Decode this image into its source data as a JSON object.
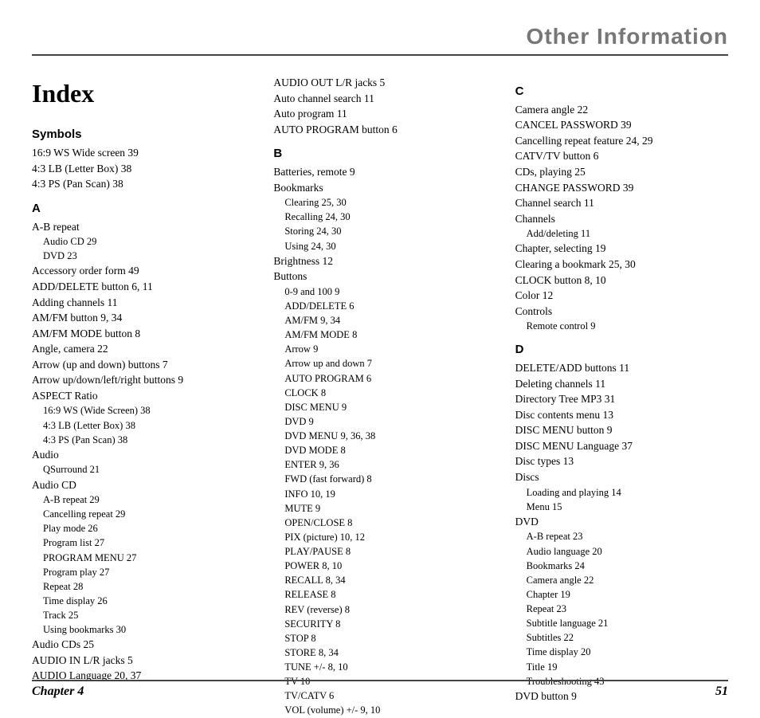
{
  "header": {
    "title": "Other Information"
  },
  "index_title": "Index",
  "footer": {
    "chapter": "Chapter 4",
    "page": "51"
  },
  "col1": {
    "sections": [
      {
        "heading": "Symbols",
        "entries": [
          {
            "t": "16:9  WS Wide screen  39"
          },
          {
            "t": "4:3 LB (Letter Box)  38"
          },
          {
            "t": "4:3 PS (Pan Scan)  38"
          }
        ]
      },
      {
        "heading": "A",
        "entries": [
          {
            "t": "A-B repeat"
          },
          {
            "t": "Audio CD  29",
            "sub": true
          },
          {
            "t": "DVD  23",
            "sub": true
          },
          {
            "t": "Accessory order form  49"
          },
          {
            "t": "ADD/DELETE button  6,  11"
          },
          {
            "t": "Adding channels  11"
          },
          {
            "t": "AM/FM button  9,  34"
          },
          {
            "t": "AM/FM MODE button  8"
          },
          {
            "t": "Angle, camera  22"
          },
          {
            "t": "Arrow (up and down) buttons  7"
          },
          {
            "t": "Arrow up/down/left/right buttons  9"
          },
          {
            "t": "ASPECT Ratio"
          },
          {
            "t": "16:9 WS (Wide Screen)  38",
            "sub": true
          },
          {
            "t": "4:3 LB (Letter Box)  38",
            "sub": true
          },
          {
            "t": "4:3 PS (Pan Scan)  38",
            "sub": true
          },
          {
            "t": "Audio"
          },
          {
            "t": "QSurround  21",
            "sub": true
          },
          {
            "t": "Audio CD"
          },
          {
            "t": "A-B repeat  29",
            "sub": true
          },
          {
            "t": "Cancelling repeat  29",
            "sub": true
          },
          {
            "t": "Play mode  26",
            "sub": true
          },
          {
            "t": "Program list  27",
            "sub": true
          },
          {
            "t": "PROGRAM MENU  27",
            "sub": true
          },
          {
            "t": "Program play  27",
            "sub": true
          },
          {
            "t": "Repeat  28",
            "sub": true
          },
          {
            "t": "Time display  26",
            "sub": true
          },
          {
            "t": "Track  25",
            "sub": true
          },
          {
            "t": "Using bookmarks  30",
            "sub": true
          },
          {
            "t": "Audio CDs  25"
          },
          {
            "t": "AUDIO IN L/R jacks  5"
          },
          {
            "t": "AUDIO Language  20, 37"
          }
        ]
      }
    ]
  },
  "col2": {
    "lead_entries": [
      {
        "t": "AUDIO OUT L/R jacks  5"
      },
      {
        "t": "Auto channel search  11"
      },
      {
        "t": "Auto program  11"
      },
      {
        "t": "AUTO PROGRAM button  6"
      }
    ],
    "sections": [
      {
        "heading": "B",
        "entries": [
          {
            "t": "Batteries, remote  9"
          },
          {
            "t": "Bookmarks"
          },
          {
            "t": "Clearing  25,  30",
            "sub": true
          },
          {
            "t": "Recalling  24,  30",
            "sub": true
          },
          {
            "t": "Storing  24,  30",
            "sub": true
          },
          {
            "t": "Using  24,  30",
            "sub": true
          },
          {
            "t": "Brightness  12"
          },
          {
            "t": "Buttons"
          },
          {
            "t": "0-9  and 100  9",
            "sub": true
          },
          {
            "t": "ADD/DELETE  6",
            "sub": true
          },
          {
            "t": "AM/FM  9,  34",
            "sub": true
          },
          {
            "t": "AM/FM MODE  8",
            "sub": true
          },
          {
            "t": "Arrow  9",
            "sub": true
          },
          {
            "t": "Arrow up and down  7",
            "sub": true
          },
          {
            "t": "AUTO PROGRAM  6",
            "sub": true
          },
          {
            "t": "CLOCK  8",
            "sub": true
          },
          {
            "t": "DISC MENU  9",
            "sub": true
          },
          {
            "t": "DVD  9",
            "sub": true
          },
          {
            "t": "DVD MENU  9,  36,  38",
            "sub": true
          },
          {
            "t": "DVD MODE  8",
            "sub": true
          },
          {
            "t": "ENTER  9,  36",
            "sub": true
          },
          {
            "t": "FWD (fast forward)  8",
            "sub": true
          },
          {
            "t": "INFO  10,  19",
            "sub": true
          },
          {
            "t": "MUTE  9",
            "sub": true
          },
          {
            "t": "OPEN/CLOSE  8",
            "sub": true
          },
          {
            "t": "PIX (picture)  10,  12",
            "sub": true
          },
          {
            "t": "PLAY/PAUSE  8",
            "sub": true
          },
          {
            "t": "POWER  8,  10",
            "sub": true
          },
          {
            "t": "RECALL  8,  34",
            "sub": true
          },
          {
            "t": "RELEASE  8",
            "sub": true
          },
          {
            "t": "REV (reverse)  8",
            "sub": true
          },
          {
            "t": "SECURITY  8",
            "sub": true
          },
          {
            "t": "STOP  8",
            "sub": true
          },
          {
            "t": "STORE  8,  34",
            "sub": true
          },
          {
            "t": "TUNE +/-  8,  10",
            "sub": true
          },
          {
            "t": "TV  10",
            "sub": true
          },
          {
            "t": "TV/CATV  6",
            "sub": true
          },
          {
            "t": "VOL (volume) +/-  9, 10",
            "sub": true
          }
        ]
      }
    ]
  },
  "col3": {
    "sections": [
      {
        "heading": "C",
        "entries": [
          {
            "t": "Camera angle  22"
          },
          {
            "t": "CANCEL PASSWORD  39"
          },
          {
            "t": "Cancelling repeat feature  24,  29"
          },
          {
            "t": "CATV/TV button  6"
          },
          {
            "t": "CDs, playing  25"
          },
          {
            "t": "CHANGE PASSWORD  39"
          },
          {
            "t": "Channel search  11"
          },
          {
            "t": "Channels"
          },
          {
            "t": "Add/deleting  11",
            "sub": true
          },
          {
            "t": "Chapter, selecting  19"
          },
          {
            "t": "Clearing a bookmark  25,  30"
          },
          {
            "t": "CLOCK button  8,  10"
          },
          {
            "t": "Color  12"
          },
          {
            "t": "Controls"
          },
          {
            "t": "Remote control  9",
            "sub": true
          }
        ]
      },
      {
        "heading": "D",
        "entries": [
          {
            "t": "DELETE/ADD buttons  11"
          },
          {
            "t": "Deleting channels  11"
          },
          {
            "t": "Directory Tree MP3  31"
          },
          {
            "t": "Disc contents menu  13"
          },
          {
            "t": "DISC MENU button  9"
          },
          {
            "t": "DISC MENU Language  37"
          },
          {
            "t": "Disc types  13"
          },
          {
            "t": "Discs"
          },
          {
            "t": "Loading and playing  14",
            "sub": true
          },
          {
            "t": "Menu  15",
            "sub": true
          },
          {
            "t": "DVD"
          },
          {
            "t": "A-B repeat  23",
            "sub": true
          },
          {
            "t": "Audio language  20",
            "sub": true
          },
          {
            "t": "Bookmarks  24",
            "sub": true
          },
          {
            "t": "Camera angle  22",
            "sub": true
          },
          {
            "t": "Chapter  19",
            "sub": true
          },
          {
            "t": "Repeat  23",
            "sub": true
          },
          {
            "t": "Subtitle language  21",
            "sub": true
          },
          {
            "t": "Subtitles  22",
            "sub": true
          },
          {
            "t": "Time display  20",
            "sub": true
          },
          {
            "t": "Title  19",
            "sub": true
          },
          {
            "t": "Troubleshooting  43",
            "sub": true
          },
          {
            "t": "DVD button  9"
          }
        ]
      }
    ]
  }
}
